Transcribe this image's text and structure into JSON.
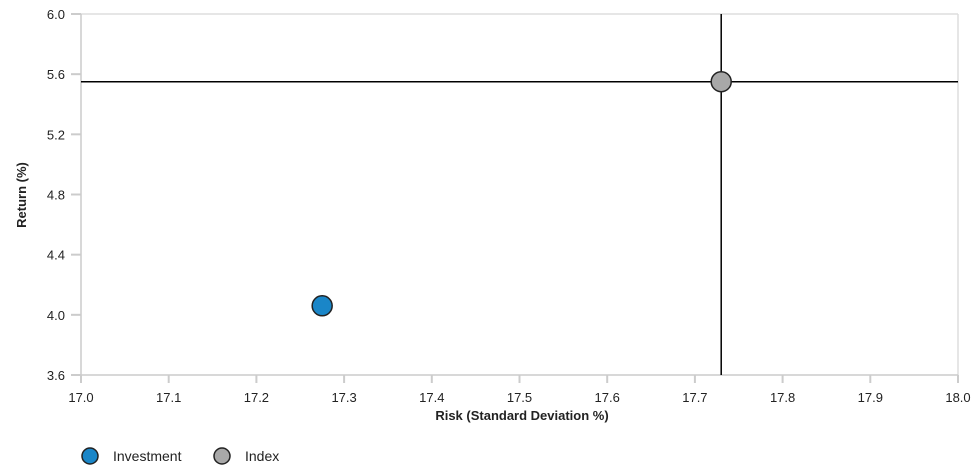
{
  "chart_data": {
    "type": "scatter",
    "xlabel": "Risk (Standard Deviation %)",
    "ylabel": "Return (%)",
    "xlim": [
      17.0,
      18.0
    ],
    "ylim": [
      3.6,
      6.0
    ],
    "x_ticks": [
      "17.0",
      "17.1",
      "17.2",
      "17.3",
      "17.4",
      "17.5",
      "17.6",
      "17.7",
      "17.8",
      "17.9",
      "18.0"
    ],
    "y_ticks": [
      "3.6",
      "4.0",
      "4.4",
      "4.8",
      "5.2",
      "5.6",
      "6.0"
    ],
    "grid": false,
    "legend_position": "bottom-left",
    "series": [
      {
        "name": "Investment",
        "color": "#1a86c8",
        "x": 17.275,
        "y": 4.06
      },
      {
        "name": "Index",
        "color": "#a8a8a8",
        "x": 17.73,
        "y": 5.55
      }
    ],
    "reference_lines": {
      "x": 17.73,
      "y": 5.55
    }
  }
}
